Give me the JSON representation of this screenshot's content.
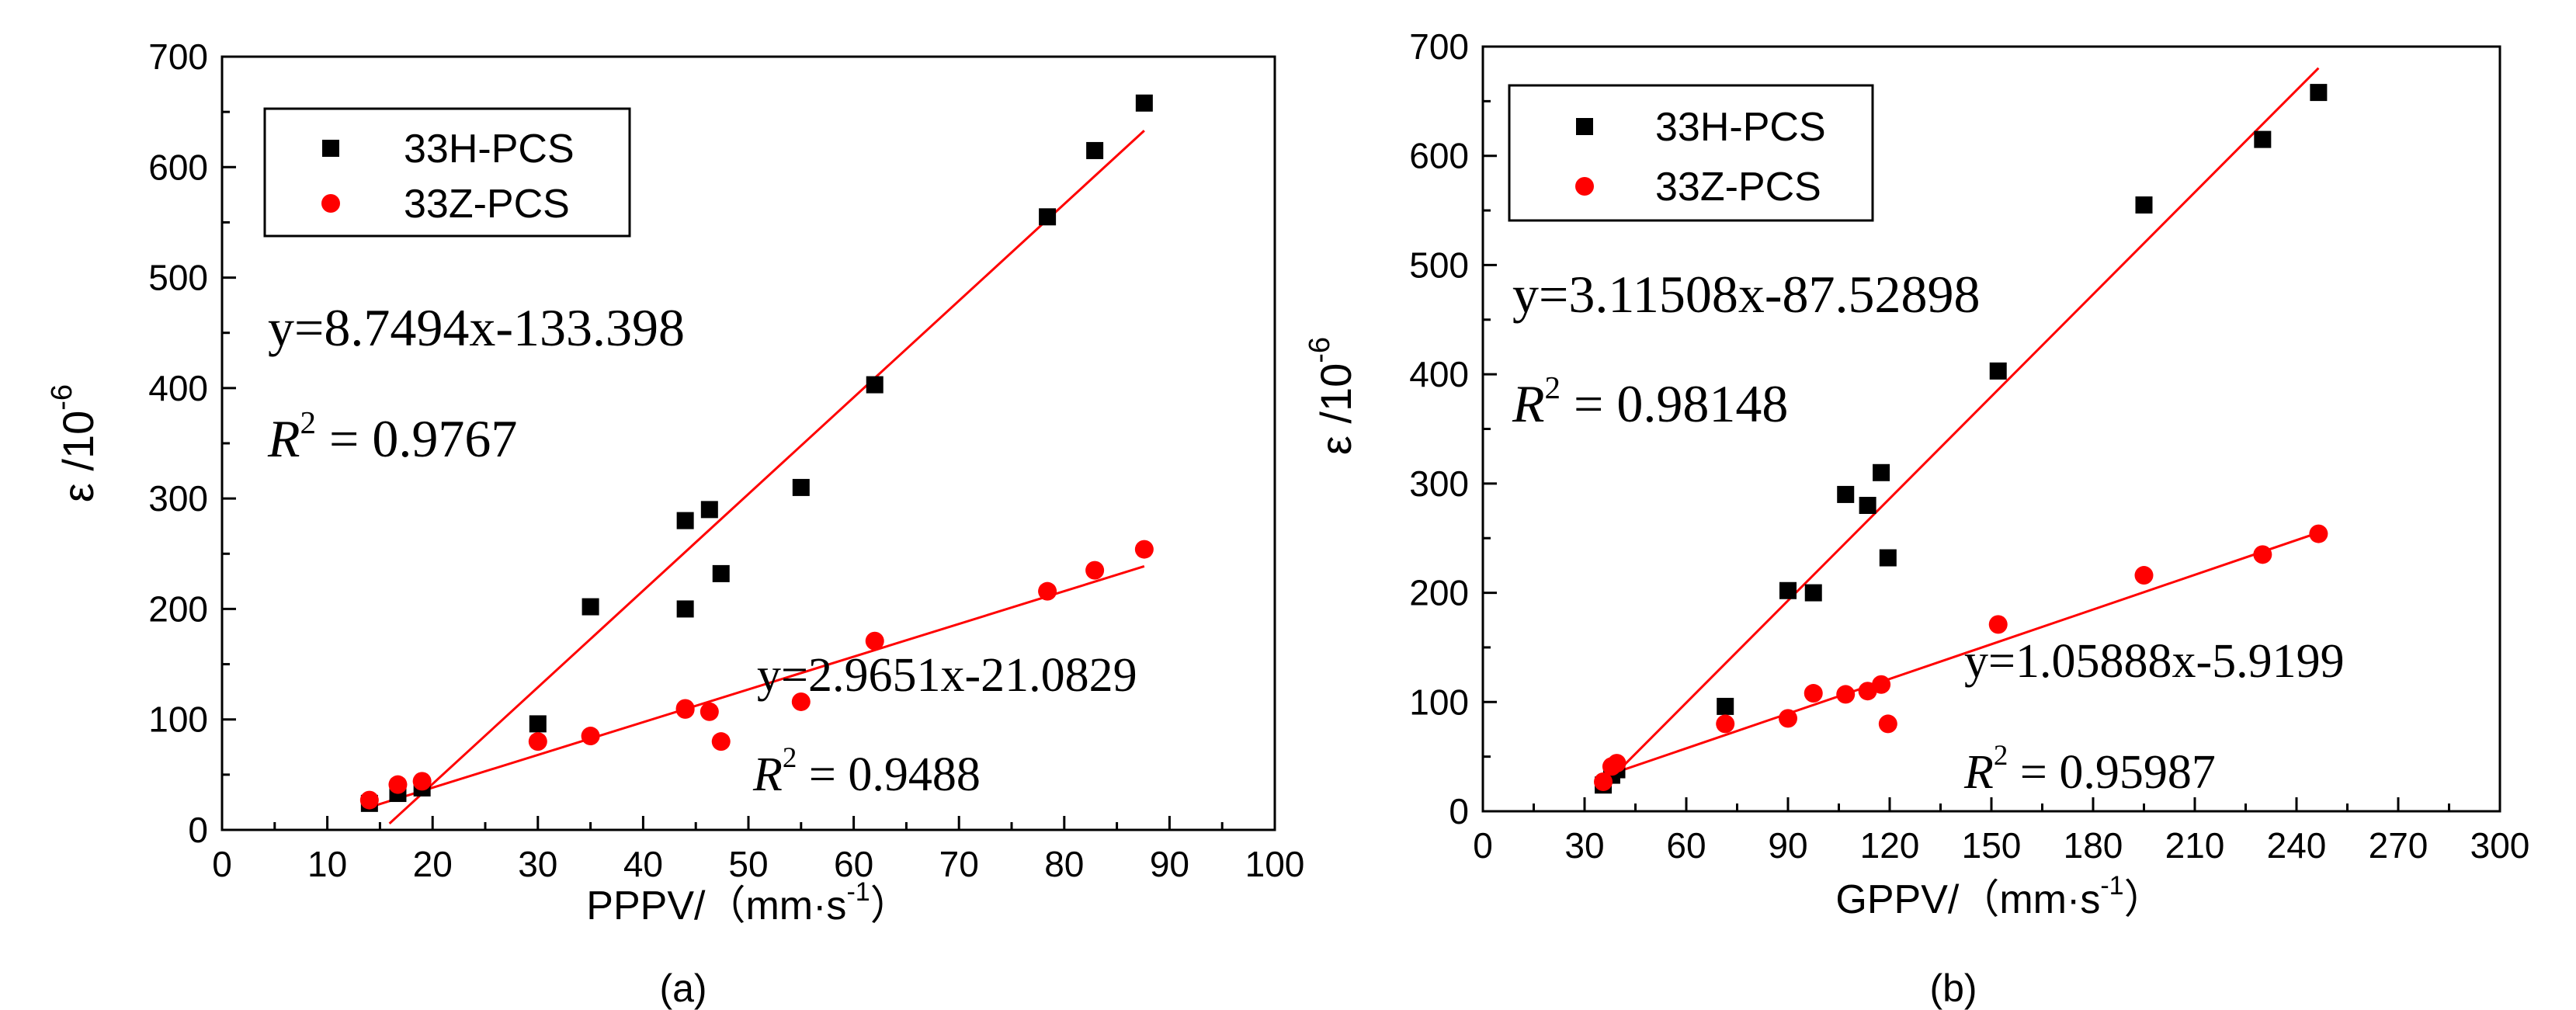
{
  "chart_data": [
    {
      "type": "scatter",
      "panel": "(a)",
      "xlabel": "PPPV/（mm·s",
      "xlabel_sup": "-1",
      "xlabel_close": "）",
      "ylabel": "ε /10",
      "ylabel_sup": "-6",
      "xlim": [
        0,
        100
      ],
      "ylim": [
        0,
        700
      ],
      "xticks": [
        0,
        10,
        20,
        30,
        40,
        50,
        60,
        70,
        80,
        90,
        100
      ],
      "yticks": [
        0,
        100,
        200,
        300,
        400,
        500,
        600,
        700
      ],
      "legend_position": "top-left",
      "series": [
        {
          "name": "33H-PCS",
          "marker": "square",
          "color": "#000000",
          "points": [
            [
              14,
              24
            ],
            [
              16.7,
              33
            ],
            [
              19,
              38
            ],
            [
              30,
              96
            ],
            [
              35,
              202
            ],
            [
              44,
              280
            ],
            [
              44,
              200
            ],
            [
              46.3,
              290
            ],
            [
              47.4,
              232
            ],
            [
              55,
              310
            ],
            [
              62,
              403
            ],
            [
              78.4,
              555
            ],
            [
              82.9,
              615
            ],
            [
              87.6,
              658
            ]
          ],
          "fit": {
            "slope": 8.7494,
            "intercept": -133.398,
            "x_range": [
              15.9,
              87.6
            ],
            "color": "#ff0000"
          },
          "equation": "y=8.7494x-133.398",
          "r2_label": "R",
          "r2_sup": "2",
          "r2_value": "= 0.9767"
        },
        {
          "name": "33Z-PCS",
          "marker": "circle",
          "color": "#ff0000",
          "points": [
            [
              14,
              27
            ],
            [
              16.7,
              41
            ],
            [
              19,
              44
            ],
            [
              30,
              80
            ],
            [
              35,
              85
            ],
            [
              44,
              110
            ],
            [
              44,
              109
            ],
            [
              46.3,
              107
            ],
            [
              47.4,
              80
            ],
            [
              55,
              116
            ],
            [
              62,
              171
            ],
            [
              78.4,
              216
            ],
            [
              82.9,
              235
            ],
            [
              87.6,
              254
            ]
          ],
          "fit": {
            "slope": 2.9651,
            "intercept": -21.0829,
            "x_range": [
              14,
              87.6
            ],
            "color": "#ff0000"
          },
          "equation": "y=2.9651x-21.0829",
          "r2_label": "R",
          "r2_sup": "2",
          "r2_value": "= 0.9488"
        }
      ]
    },
    {
      "type": "scatter",
      "panel": "(b)",
      "xlabel": "GPPV/（mm·s",
      "xlabel_sup": "-1",
      "xlabel_close": "）",
      "ylabel": "ε /10",
      "ylabel_sup": "-6",
      "xlim": [
        0,
        300
      ],
      "ylim": [
        0,
        700
      ],
      "xticks": [
        0,
        30,
        60,
        90,
        120,
        150,
        180,
        210,
        240,
        270,
        300
      ],
      "yticks": [
        0,
        100,
        200,
        300,
        400,
        500,
        600,
        700
      ],
      "legend_position": "top-left",
      "series": [
        {
          "name": "33H-PCS",
          "marker": "square",
          "color": "#000000",
          "points": [
            [
              35.5,
              24
            ],
            [
              38,
              33
            ],
            [
              39.5,
              38
            ],
            [
              71.5,
              96
            ],
            [
              90,
              202
            ],
            [
              97.5,
              200
            ],
            [
              107,
              290
            ],
            [
              113.5,
              280
            ],
            [
              117.5,
              310
            ],
            [
              119.5,
              232
            ],
            [
              152,
              403
            ],
            [
              195,
              555
            ],
            [
              230,
              615
            ],
            [
              246.5,
              658
            ]
          ],
          "fit": {
            "slope": 3.11508,
            "intercept": -87.52898,
            "x_range": [
              35.5,
              246.5
            ],
            "color": "#ff0000"
          },
          "equation": "y=3.11508x-87.52898",
          "r2_label": "R",
          "r2_sup": "2",
          "r2_value": "= 0.98148"
        },
        {
          "name": "33Z-PCS",
          "marker": "circle",
          "color": "#ff0000",
          "points": [
            [
              35.5,
              27
            ],
            [
              38,
              41
            ],
            [
              39.5,
              44
            ],
            [
              71.5,
              80
            ],
            [
              90,
              85
            ],
            [
              97.5,
              108
            ],
            [
              107,
              107
            ],
            [
              113.5,
              110
            ],
            [
              117.5,
              116
            ],
            [
              119.5,
              80
            ],
            [
              152,
              171
            ],
            [
              195,
              216
            ],
            [
              230,
              235
            ],
            [
              246.5,
              254
            ]
          ],
          "fit": {
            "slope": 1.05888,
            "intercept": -5.9199,
            "x_range": [
              35.5,
              246.5
            ],
            "color": "#ff0000"
          },
          "equation": "y=1.05888x-5.9199",
          "r2_label": "R",
          "r2_sup": "2",
          "r2_value": "= 0.95987"
        }
      ]
    }
  ]
}
